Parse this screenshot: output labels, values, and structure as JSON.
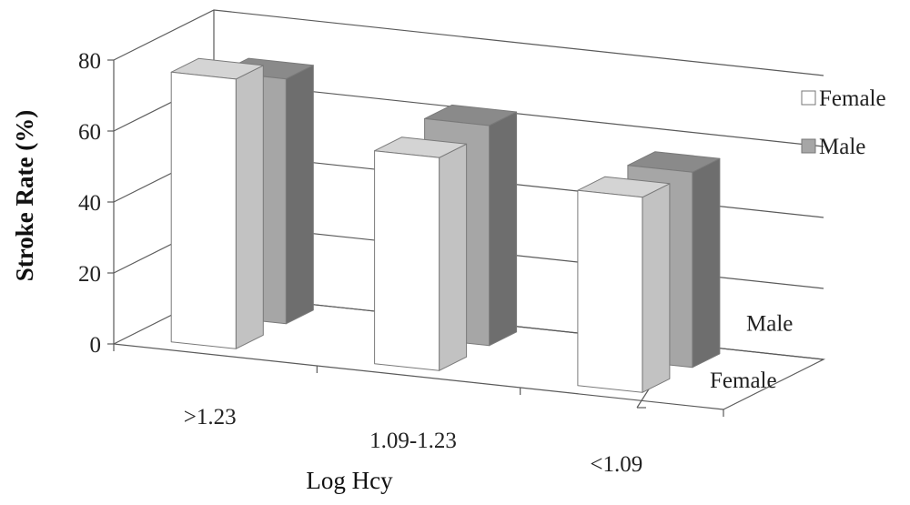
{
  "chart_data": {
    "type": "bar",
    "variant": "3d-clustered",
    "title": "",
    "xlabel": "Log Hcy",
    "ylabel": "Stroke Rate (%)",
    "ylim": [
      0,
      80
    ],
    "yticks": [
      "0",
      "20",
      "40",
      "60",
      "80"
    ],
    "categories": [
      ">1.23",
      "1.09-1.23",
      "<1.09"
    ],
    "depth_labels": [
      "Female",
      "Male"
    ],
    "series": [
      {
        "name": "Female",
        "values": [
          76,
          60,
          55
        ],
        "color": "#ffffff"
      },
      {
        "name": "Male",
        "values": [
          69,
          62,
          55
        ],
        "color": "#a6a6a6"
      }
    ],
    "grid": true,
    "legend": "right"
  }
}
